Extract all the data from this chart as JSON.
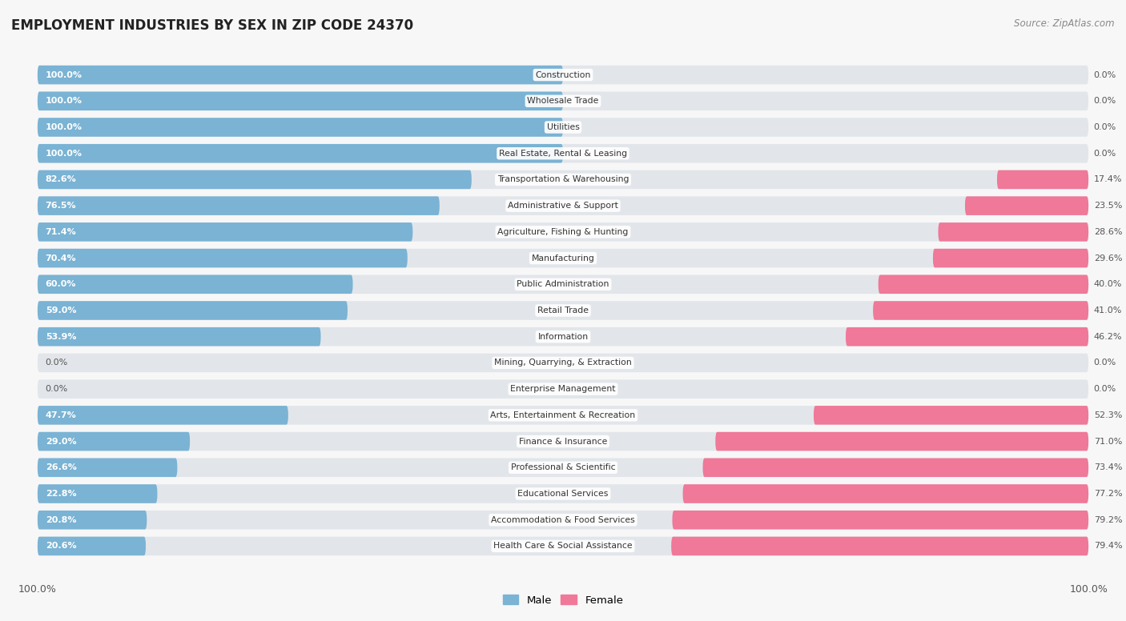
{
  "title": "EMPLOYMENT INDUSTRIES BY SEX IN ZIP CODE 24370",
  "source": "Source: ZipAtlas.com",
  "male_color": "#7ab3d4",
  "female_color": "#f07898",
  "row_bg_color": "#e2e6ea",
  "background_color": "#f7f7f7",
  "categories": [
    "Construction",
    "Wholesale Trade",
    "Utilities",
    "Real Estate, Rental & Leasing",
    "Transportation & Warehousing",
    "Administrative & Support",
    "Agriculture, Fishing & Hunting",
    "Manufacturing",
    "Public Administration",
    "Retail Trade",
    "Information",
    "Mining, Quarrying, & Extraction",
    "Enterprise Management",
    "Arts, Entertainment & Recreation",
    "Finance & Insurance",
    "Professional & Scientific",
    "Educational Services",
    "Accommodation & Food Services",
    "Health Care & Social Assistance"
  ],
  "male_pct": [
    100.0,
    100.0,
    100.0,
    100.0,
    82.6,
    76.5,
    71.4,
    70.4,
    60.0,
    59.0,
    53.9,
    0.0,
    0.0,
    47.7,
    29.0,
    26.6,
    22.8,
    20.8,
    20.6
  ],
  "female_pct": [
    0.0,
    0.0,
    0.0,
    0.0,
    17.4,
    23.5,
    28.6,
    29.6,
    40.0,
    41.0,
    46.2,
    0.0,
    0.0,
    52.3,
    71.0,
    73.4,
    77.2,
    79.2,
    79.4
  ],
  "legend_male": "Male",
  "legend_female": "Female",
  "xlim_left": -105,
  "xlim_right": 105
}
